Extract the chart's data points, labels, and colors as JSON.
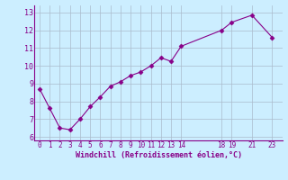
{
  "x": [
    0,
    1,
    2,
    3,
    4,
    5,
    6,
    7,
    8,
    9,
    10,
    11,
    12,
    13,
    14,
    18,
    19,
    21,
    23
  ],
  "y": [
    8.7,
    7.6,
    6.5,
    6.4,
    7.0,
    7.7,
    8.25,
    8.85,
    9.1,
    9.45,
    9.65,
    10.0,
    10.45,
    10.25,
    11.1,
    12.0,
    12.45,
    12.85,
    11.6
  ],
  "xticks": [
    0,
    1,
    2,
    3,
    4,
    5,
    6,
    7,
    8,
    9,
    10,
    11,
    12,
    13,
    14,
    18,
    19,
    21,
    23
  ],
  "yticks": [
    6,
    7,
    8,
    9,
    10,
    11,
    12,
    13
  ],
  "ylim": [
    5.8,
    13.4
  ],
  "xlim": [
    -0.5,
    24.0
  ],
  "xlabel": "Windchill (Refroidissement éolien,°C)",
  "line_color": "#880088",
  "marker": "D",
  "marker_size": 2.5,
  "bg_color": "#cceeff",
  "grid_color": "#aabbcc",
  "tick_color": "#880088",
  "xlabel_color": "#880088"
}
